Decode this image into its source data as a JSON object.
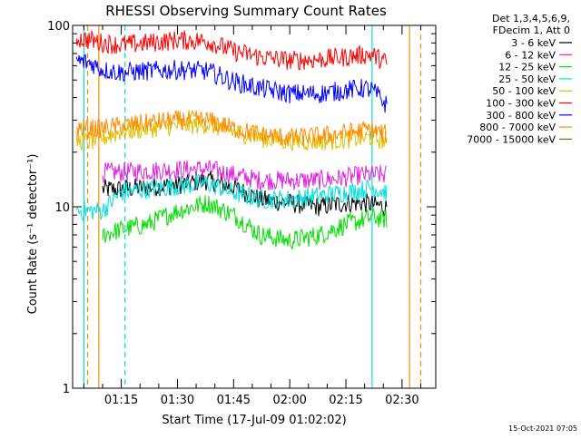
{
  "chart_data": {
    "type": "line",
    "title": "RHESSI Observing Summary Count Rates",
    "xlabel": "Start Time (17-Jul-09 01:02:02)",
    "ylabel": "Count Rate (s⁻¹ detector⁻¹)",
    "ylog": true,
    "ylim": [
      1,
      100
    ],
    "y_ticks": [
      {
        "value": 1,
        "label": "1"
      },
      {
        "value": 10,
        "label": "10"
      },
      {
        "value": 100,
        "label": "100"
      }
    ],
    "xlim": [
      "01:02",
      "02:39"
    ],
    "x_ticks": [
      "01:15",
      "01:30",
      "01:45",
      "02:00",
      "02:15",
      "02:30"
    ],
    "legend_header": [
      "Det 1,3,4,5,6,9,",
      "FDecim 1, Att 0"
    ],
    "legend_position": "right",
    "footer": "15-Oct-2021 07:05",
    "vertical_markers": [
      {
        "x": "01:05",
        "color": "#00e0e0",
        "style": "solid"
      },
      {
        "x": "01:06",
        "color": "#ff8c00",
        "style": "dashed"
      },
      {
        "x": "01:09",
        "color": "#ff8c00",
        "style": "solid"
      },
      {
        "x": "01:16",
        "color": "#00e0e0",
        "style": "dashed"
      },
      {
        "x": "02:22",
        "color": "#00e0e0",
        "style": "solid"
      },
      {
        "x": "02:32",
        "color": "#ff8c00",
        "style": "solid"
      },
      {
        "x": "02:35",
        "color": "#ff8c00",
        "style": "dashed"
      }
    ],
    "series": [
      {
        "name": "3 - 6 keV",
        "color": "#000000",
        "x": [
          "01:10",
          "01:15",
          "01:22",
          "01:30",
          "01:38",
          "01:45",
          "01:52",
          "02:00",
          "02:08",
          "02:15",
          "02:20",
          "02:22",
          "02:26"
        ],
        "values": [
          12.5,
          12.5,
          12.8,
          13.2,
          14.0,
          12.8,
          11.0,
          10.5,
          10.0,
          10.5,
          10.5,
          10.3,
          10.0
        ]
      },
      {
        "name": "6 - 12 keV",
        "color": "#e020e0",
        "x": [
          "01:10",
          "01:15",
          "01:22",
          "01:30",
          "01:38",
          "01:45",
          "01:52",
          "02:00",
          "02:08",
          "02:15",
          "02:20",
          "02:22",
          "02:26"
        ],
        "values": [
          15.5,
          15.5,
          15.8,
          16.0,
          16.2,
          15.0,
          14.0,
          14.0,
          14.0,
          14.5,
          15.0,
          15.0,
          15.0
        ]
      },
      {
        "name": "12 - 25 keV",
        "color": "#00e000",
        "x": [
          "01:10",
          "01:15",
          "01:22",
          "01:30",
          "01:38",
          "01:45",
          "01:52",
          "02:00",
          "02:08",
          "02:15",
          "02:20",
          "02:22",
          "02:26"
        ],
        "values": [
          7.0,
          7.5,
          8.0,
          9.5,
          10.5,
          9.0,
          7.0,
          6.5,
          7.0,
          8.0,
          8.5,
          8.8,
          8.5
        ]
      },
      {
        "name": "25 - 50 keV",
        "color": "#00e0e0",
        "x": [
          "01:03",
          "01:07",
          "01:10",
          "01:15",
          "01:22",
          "01:30",
          "01:38",
          "01:45",
          "01:52",
          "02:00",
          "02:08",
          "02:15",
          "02:20",
          "02:22",
          "02:26"
        ],
        "values": [
          9.5,
          9.5,
          9.5,
          12.0,
          12.5,
          13.0,
          13.5,
          12.0,
          11.0,
          11.0,
          11.5,
          12.0,
          12.5,
          12.8,
          12.0
        ]
      },
      {
        "name": "50 - 100 keV",
        "color": "#e0c000",
        "x": [
          "01:03",
          "01:07",
          "01:10",
          "01:15",
          "01:22",
          "01:30",
          "01:38",
          "01:45",
          "01:52",
          "02:00",
          "02:08",
          "02:15",
          "02:20",
          "02:22",
          "02:26"
        ],
        "values": [
          23.0,
          23.0,
          24.0,
          26.0,
          27.0,
          28.0,
          28.5,
          26.0,
          24.0,
          23.0,
          23.0,
          23.5,
          24.0,
          24.0,
          23.0
        ]
      },
      {
        "name": "100 - 300 keV",
        "color": "#ff0000",
        "x": [
          "01:03",
          "01:07",
          "01:10",
          "01:15",
          "01:22",
          "01:30",
          "01:38",
          "01:45",
          "01:52",
          "02:00",
          "02:08",
          "02:15",
          "02:20",
          "02:22",
          "02:26"
        ],
        "values": [
          85.0,
          83.0,
          80.0,
          78.0,
          80.0,
          83.0,
          82.0,
          72.0,
          67.0,
          64.0,
          65.0,
          67.0,
          69.0,
          69.0,
          62.0
        ]
      },
      {
        "name": "300 - 800 keV",
        "color": "#0000ff",
        "x": [
          "01:03",
          "01:07",
          "01:10",
          "01:15",
          "01:22",
          "01:30",
          "01:38",
          "01:45",
          "01:52",
          "02:00",
          "02:08",
          "02:15",
          "02:20",
          "02:22",
          "02:26"
        ],
        "values": [
          64.0,
          62.0,
          57.0,
          55.0,
          56.0,
          57.0,
          56.0,
          49.0,
          45.0,
          42.0,
          42.0,
          44.0,
          45.0,
          44.0,
          36.0
        ]
      },
      {
        "name": "800 - 7000 keV",
        "color": "#ff8c00",
        "x": [
          "01:03",
          "01:07",
          "01:10",
          "01:15",
          "01:22",
          "01:30",
          "01:38",
          "01:45",
          "01:52",
          "02:00",
          "02:08",
          "02:15",
          "02:20",
          "02:22",
          "02:26"
        ],
        "values": [
          27.0,
          27.0,
          27.0,
          28.0,
          29.0,
          30.0,
          30.0,
          27.0,
          25.0,
          24.0,
          24.5,
          25.5,
          26.5,
          26.5,
          25.0
        ]
      },
      {
        "name": "7000 - 15000 keV",
        "color": "#8b6914",
        "x": [],
        "values": []
      }
    ]
  }
}
